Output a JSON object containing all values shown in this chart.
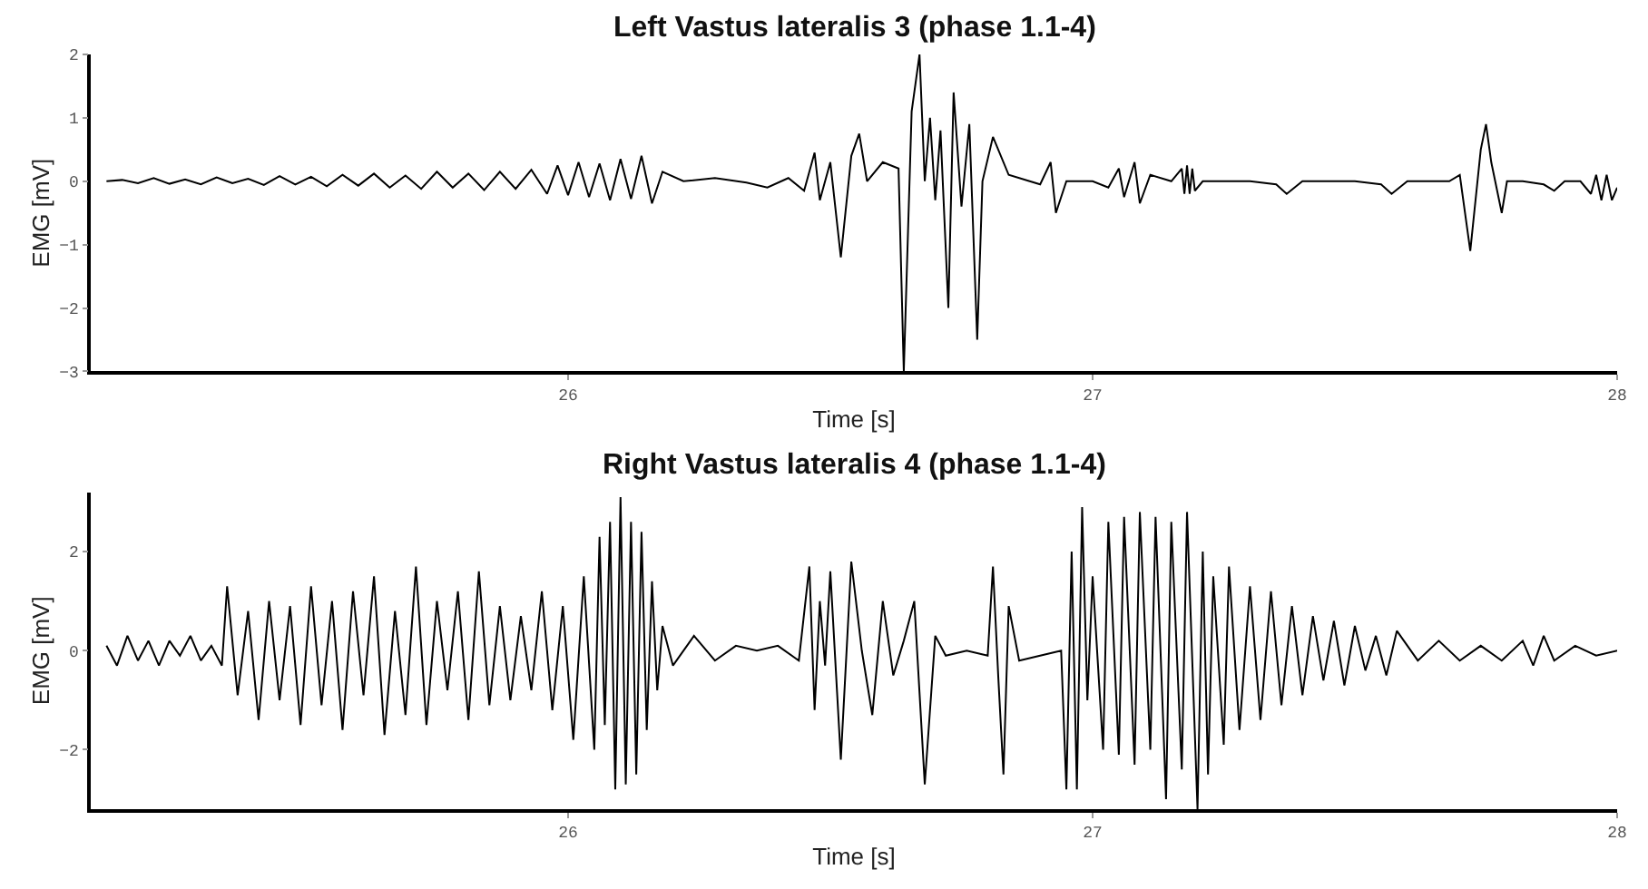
{
  "chart_data": [
    {
      "type": "line",
      "title": "Left Vastus lateralis 3 (phase 1.1-4)",
      "xlabel": "Time [s]",
      "ylabel": "EMG [mV]",
      "xlim": [
        25.09,
        28.0
      ],
      "xticks": [
        26,
        27,
        28
      ],
      "ylim": [
        -3.0,
        2.0
      ],
      "yticks": [
        -3,
        -2,
        -1,
        0,
        1,
        2
      ],
      "series": [
        {
          "color": "#000000",
          "x": [
            25.12,
            25.15,
            25.18,
            25.21,
            25.24,
            25.27,
            25.3,
            25.33,
            25.36,
            25.39,
            25.42,
            25.45,
            25.48,
            25.51,
            25.54,
            25.57,
            25.6,
            25.63,
            25.66,
            25.69,
            25.72,
            25.75,
            25.78,
            25.81,
            25.84,
            25.87,
            25.9,
            25.93,
            25.96,
            25.98,
            26.0,
            26.02,
            26.04,
            26.06,
            26.08,
            26.1,
            26.12,
            26.14,
            26.16,
            26.18,
            26.22,
            26.28,
            26.34,
            26.38,
            26.42,
            26.45,
            26.47,
            26.48,
            26.5,
            26.52,
            26.54,
            26.555,
            26.57,
            26.6,
            26.63,
            26.64,
            26.655,
            26.67,
            26.68,
            26.69,
            26.7,
            26.71,
            26.725,
            26.735,
            26.75,
            26.765,
            26.78,
            26.79,
            26.81,
            26.84,
            26.88,
            26.9,
            26.92,
            26.93,
            26.95,
            27.0,
            27.03,
            27.05,
            27.06,
            27.08,
            27.09,
            27.11,
            27.15,
            27.17,
            27.175,
            27.18,
            27.185,
            27.19,
            27.195,
            27.21,
            27.3,
            27.35,
            27.37,
            27.4,
            27.5,
            27.55,
            27.57,
            27.6,
            27.68,
            27.7,
            27.72,
            27.74,
            27.75,
            27.76,
            27.78,
            27.79,
            27.82,
            27.86,
            27.88,
            27.9,
            27.93,
            27.95,
            27.96,
            27.97,
            27.98,
            27.99,
            28.0
          ],
          "values": [
            0,
            0.02,
            -0.03,
            0.05,
            -0.04,
            0.03,
            -0.05,
            0.06,
            -0.03,
            0.04,
            -0.06,
            0.08,
            -0.05,
            0.07,
            -0.08,
            0.1,
            -0.07,
            0.12,
            -0.1,
            0.09,
            -0.12,
            0.15,
            -0.1,
            0.12,
            -0.14,
            0.15,
            -0.12,
            0.18,
            -0.2,
            0.25,
            -0.22,
            0.3,
            -0.25,
            0.28,
            -0.3,
            0.35,
            -0.28,
            0.4,
            -0.35,
            0.15,
            0.0,
            0.05,
            -0.02,
            -0.1,
            0.05,
            -0.15,
            0.45,
            -0.3,
            0.3,
            -1.2,
            0.4,
            0.75,
            0.0,
            0.3,
            0.2,
            -3.0,
            1.1,
            2.0,
            0.0,
            1.0,
            -0.3,
            0.8,
            -2.0,
            1.4,
            -0.4,
            0.9,
            -2.5,
            0.0,
            0.7,
            0.1,
            0.0,
            -0.05,
            0.3,
            -0.5,
            0.0,
            0.0,
            -0.1,
            0.2,
            -0.25,
            0.3,
            -0.35,
            0.1,
            0.0,
            0.2,
            -0.2,
            0.25,
            -0.2,
            0.2,
            -0.15,
            0.0,
            0.0,
            -0.05,
            -0.2,
            0.0,
            0.0,
            -0.05,
            -0.2,
            0.0,
            0.0,
            0.1,
            -1.1,
            0.5,
            0.9,
            0.3,
            -0.5,
            0.0,
            0.0,
            -0.05,
            -0.15,
            0.0,
            0.0,
            -0.2,
            0.1,
            -0.3,
            0.1,
            -0.3,
            -0.1
          ]
        }
      ]
    },
    {
      "type": "line",
      "title": "Right Vastus lateralis 4 (phase 1.1-4)",
      "xlabel": "Time [s]",
      "ylabel": "EMG [mV]",
      "xlim": [
        25.09,
        28.0
      ],
      "xticks": [
        26,
        27,
        28
      ],
      "ylim": [
        -3.2,
        3.2
      ],
      "yticks": [
        -2,
        0,
        2
      ],
      "series": [
        {
          "color": "#000000",
          "x": [
            25.12,
            25.14,
            25.16,
            25.18,
            25.2,
            25.22,
            25.24,
            25.26,
            25.28,
            25.3,
            25.32,
            25.34,
            25.35,
            25.37,
            25.39,
            25.41,
            25.43,
            25.45,
            25.47,
            25.49,
            25.51,
            25.53,
            25.55,
            25.57,
            25.59,
            25.61,
            25.63,
            25.65,
            25.67,
            25.69,
            25.71,
            25.73,
            25.75,
            25.77,
            25.79,
            25.81,
            25.83,
            25.85,
            25.87,
            25.89,
            25.91,
            25.93,
            25.95,
            25.97,
            25.99,
            26.01,
            26.03,
            26.05,
            26.06,
            26.07,
            26.08,
            26.09,
            26.1,
            26.11,
            26.12,
            26.13,
            26.14,
            26.15,
            26.16,
            26.17,
            26.18,
            26.2,
            26.24,
            26.28,
            26.32,
            26.36,
            26.4,
            26.44,
            26.46,
            26.47,
            26.48,
            26.49,
            26.5,
            26.52,
            26.54,
            26.56,
            26.58,
            26.6,
            26.62,
            26.64,
            26.66,
            26.68,
            26.7,
            26.72,
            26.76,
            26.8,
            26.81,
            26.82,
            26.83,
            26.84,
            26.86,
            26.9,
            26.94,
            26.95,
            26.96,
            26.97,
            26.98,
            26.99,
            27.0,
            27.02,
            27.03,
            27.05,
            27.06,
            27.08,
            27.09,
            27.11,
            27.12,
            27.14,
            27.15,
            27.17,
            27.18,
            27.2,
            27.21,
            27.22,
            27.23,
            27.25,
            27.26,
            27.28,
            27.3,
            27.32,
            27.34,
            27.36,
            27.38,
            27.4,
            27.42,
            27.44,
            27.46,
            27.48,
            27.5,
            27.52,
            27.54,
            27.56,
            27.58,
            27.62,
            27.66,
            27.7,
            27.74,
            27.78,
            27.82,
            27.84,
            27.86,
            27.88,
            27.92,
            27.96,
            28.0
          ],
          "values": [
            0.1,
            -0.3,
            0.3,
            -0.2,
            0.2,
            -0.3,
            0.2,
            -0.1,
            0.3,
            -0.2,
            0.1,
            -0.3,
            1.3,
            -0.9,
            0.8,
            -1.4,
            1.0,
            -1.0,
            0.9,
            -1.5,
            1.3,
            -1.1,
            1.0,
            -1.6,
            1.2,
            -0.9,
            1.5,
            -1.7,
            0.8,
            -1.3,
            1.7,
            -1.5,
            1.0,
            -0.8,
            1.2,
            -1.4,
            1.6,
            -1.1,
            0.9,
            -1.0,
            0.7,
            -0.8,
            1.2,
            -1.2,
            0.9,
            -1.8,
            1.5,
            -2.0,
            2.3,
            -1.5,
            2.6,
            -2.8,
            3.1,
            -2.7,
            2.6,
            -2.5,
            2.4,
            -1.6,
            1.4,
            -0.8,
            0.5,
            -0.3,
            0.3,
            -0.2,
            0.1,
            0.0,
            0.1,
            -0.2,
            1.7,
            -1.2,
            1.0,
            -0.3,
            1.6,
            -2.2,
            1.8,
            0.0,
            -1.3,
            1.0,
            -0.5,
            0.2,
            1.0,
            -2.7,
            0.3,
            -0.1,
            0.0,
            -0.1,
            1.7,
            -0.5,
            -2.5,
            0.9,
            -0.2,
            -0.1,
            0.0,
            -2.8,
            2.0,
            -2.8,
            2.9,
            -1.0,
            1.5,
            -2.0,
            2.6,
            -2.1,
            2.7,
            -2.3,
            2.8,
            -2.0,
            2.7,
            -3.0,
            2.6,
            -2.4,
            2.8,
            -3.2,
            2.0,
            -2.5,
            1.5,
            -1.9,
            1.7,
            -1.6,
            1.3,
            -1.4,
            1.2,
            -1.1,
            0.9,
            -0.9,
            0.7,
            -0.6,
            0.6,
            -0.7,
            0.5,
            -0.4,
            0.3,
            -0.5,
            0.4,
            -0.2,
            0.2,
            -0.2,
            0.1,
            -0.2,
            0.2,
            -0.3,
            0.3,
            -0.2,
            0.1,
            -0.1,
            0.0
          ]
        }
      ]
    }
  ]
}
